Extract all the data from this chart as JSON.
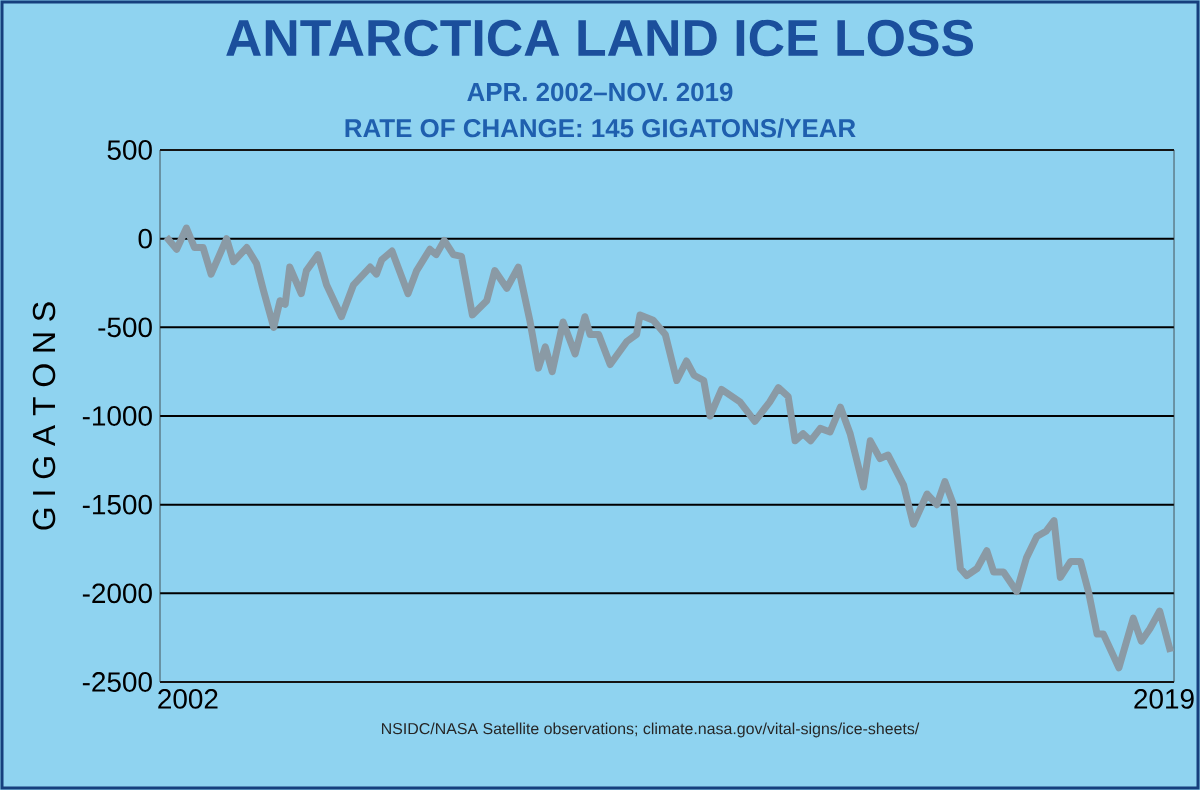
{
  "chart_data": {
    "type": "line",
    "title": "ANTARCTICA LAND ICE LOSS",
    "subtitle": "APR. 2002–NOV. 2019",
    "ylabel": "G I G A T O N S",
    "annotations": [
      "RATE OF CHANGE: 145 GIGATONS/YEAR",
      "NSIDC/NASA Satellite observations; climate.nasa.gov/vital-signs/ice-sheets/"
    ],
    "x": [
      2001.52,
      2001.7,
      2001.87,
      2002.01,
      2002.16,
      2002.3,
      2002.57,
      2002.69,
      2002.92,
      2003.09,
      2003.21,
      2003.39,
      2003.5,
      2003.59,
      2003.67,
      2003.87,
      2003.96,
      2004.16,
      2004.31,
      2004.57,
      2004.78,
      2005.07,
      2005.18,
      2005.27,
      2005.45,
      2005.73,
      2005.88,
      2006.11,
      2006.22,
      2006.36,
      2006.52,
      2006.66,
      2006.85,
      2007.1,
      2007.24,
      2007.45,
      2007.65,
      2007.85,
      2008.0,
      2008.12,
      2008.24,
      2008.43,
      2008.64,
      2008.81,
      2008.9,
      2009.05,
      2009.25,
      2009.54,
      2009.71,
      2009.77,
      2010.0,
      2010.21,
      2010.41,
      2010.58,
      2010.71,
      2010.88,
      2010.99,
      2011.19,
      2011.51,
      2011.77,
      2012.03,
      2012.18,
      2012.35,
      2012.47,
      2012.61,
      2012.74,
      2012.91,
      2013.08,
      2013.26,
      2013.43,
      2013.66,
      2013.78,
      2013.95,
      2014.09,
      2014.36,
      2014.53,
      2014.77,
      2014.94,
      2015.08,
      2015.23,
      2015.35,
      2015.46,
      2015.64,
      2015.81,
      2015.93,
      2016.1,
      2016.33,
      2016.5,
      2016.68,
      2016.84,
      2016.98,
      2017.09,
      2017.27,
      2017.44,
      2017.58,
      2017.73,
      2017.84,
      2018.11,
      2018.36,
      2018.5,
      2018.65,
      2018.82,
      2019.01
    ],
    "series": [
      {
        "color": "#8a9aa5",
        "values": [
          10,
          -60,
          60,
          -50,
          -50,
          -200,
          0,
          -130,
          -50,
          -140,
          -290,
          -500,
          -350,
          -370,
          -160,
          -310,
          -180,
          -90,
          -260,
          -440,
          -260,
          -160,
          -200,
          -120,
          -70,
          -310,
          -180,
          -60,
          -90,
          -10,
          -90,
          -100,
          -430,
          -350,
          -180,
          -280,
          -160,
          -460,
          -730,
          -610,
          -750,
          -470,
          -650,
          -440,
          -540,
          -540,
          -710,
          -580,
          -540,
          -430,
          -460,
          -540,
          -800,
          -690,
          -770,
          -800,
          -1000,
          -850,
          -920,
          -1030,
          -920,
          -840,
          -890,
          -1140,
          -1100,
          -1140,
          -1070,
          -1090,
          -950,
          -1100,
          -1400,
          -1140,
          -1240,
          -1220,
          -1390,
          -1610,
          -1440,
          -1500,
          -1370,
          -1500,
          -1860,
          -1900,
          -1860,
          -1760,
          -1880,
          -1880,
          -1990,
          -1800,
          -1680,
          -1650,
          -1590,
          -1910,
          -1820,
          -1820,
          -1990,
          -2230,
          -2230,
          -2420,
          -2140,
          -2270,
          -2200,
          -2100,
          -2330
        ]
      }
    ],
    "xlim": [
      2001.41,
      2019.07
    ],
    "xticks": [
      2002,
      2019
    ],
    "ylim": [
      -2500,
      500
    ],
    "yticks": [
      -2500,
      -2000,
      -1500,
      -1000,
      -500,
      0,
      500
    ],
    "grid": "y"
  }
}
